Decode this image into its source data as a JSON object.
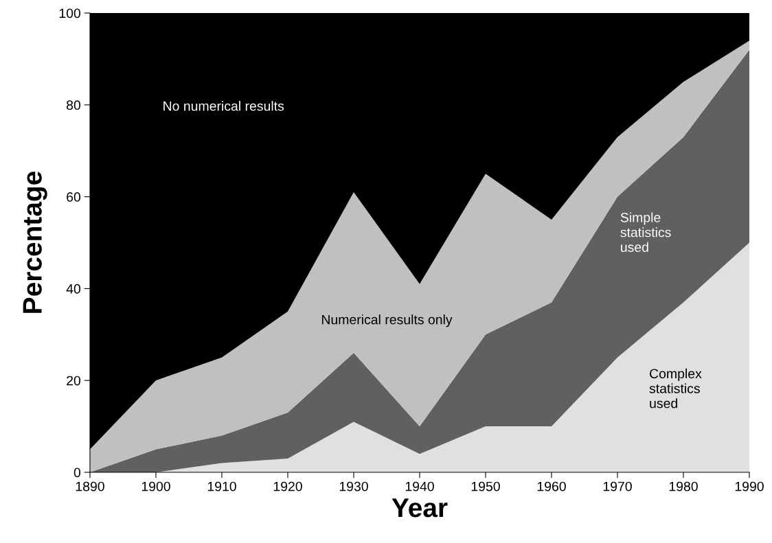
{
  "chart_data": {
    "type": "area",
    "stacked": true,
    "xlabel": "Year",
    "ylabel": "Percentage",
    "x": [
      1890,
      1900,
      1910,
      1920,
      1930,
      1940,
      1950,
      1960,
      1970,
      1980,
      1990
    ],
    "series": [
      {
        "name": "Complex\nstatistics\nused",
        "color": "#e0e0e0",
        "values": [
          0,
          0,
          2,
          3,
          11,
          4,
          10,
          10,
          25,
          37,
          50
        ]
      },
      {
        "name": "Simple\nstatistics\nused",
        "color": "#606060",
        "values": [
          0,
          5,
          6,
          10,
          15,
          6,
          20,
          27,
          35,
          36,
          42
        ]
      },
      {
        "name": "Numerical results only",
        "color": "#c0c0c0",
        "values": [
          5,
          15,
          17,
          22,
          35,
          31,
          35,
          18,
          13,
          12,
          2
        ]
      },
      {
        "name": "No numerical results",
        "color": "#000000",
        "values": [
          95,
          80,
          75,
          65,
          39,
          59,
          35,
          45,
          27,
          15,
          6
        ]
      }
    ],
    "xlim": [
      1890,
      1990
    ],
    "xticks": [
      1890,
      1900,
      1910,
      1920,
      1930,
      1940,
      1950,
      1960,
      1970,
      1980,
      1990
    ],
    "ylim": [
      0,
      100
    ],
    "yticks": [
      0,
      20,
      40,
      60,
      80,
      100
    ],
    "grid": false,
    "legend": false
  }
}
